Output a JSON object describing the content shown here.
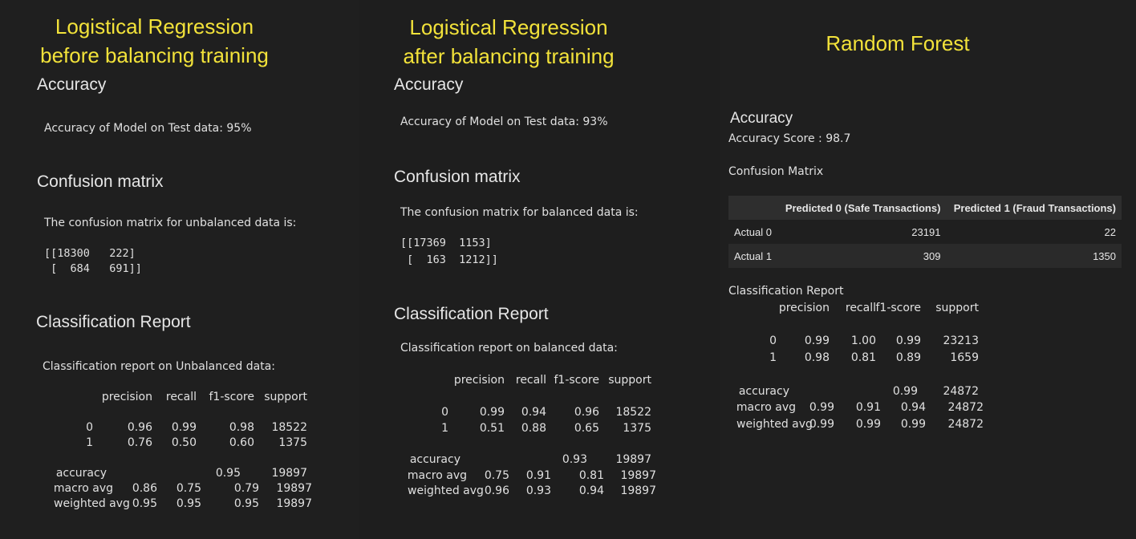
{
  "lr_unbalanced": {
    "title_line1": "Logistical Regression",
    "title_line2": "before balancing training",
    "accuracy_heading": "Accuracy",
    "accuracy_text": "Accuracy of Model on Test data: 95%",
    "cm_heading": "Confusion matrix",
    "cm_text": "The confusion matrix for unbalanced data is:",
    "cm_line1": "[[18300   222]",
    "cm_line2": " [  684   691]]",
    "report_heading": "Classification Report",
    "report_text": "Classification report on Unbalanced data:",
    "report": {
      "header": [
        "precision",
        "recall",
        "f1-score",
        "support"
      ],
      "rows": [
        {
          "label": "0",
          "values": [
            "0.96",
            "0.99",
            "0.98",
            "18522"
          ]
        },
        {
          "label": "1",
          "values": [
            "0.76",
            "0.50",
            "0.60",
            "1375"
          ]
        }
      ],
      "accuracy": {
        "label": "accuracy",
        "value": "0.95",
        "support": "19897"
      },
      "macro": {
        "label": "macro avg",
        "values": [
          "0.86",
          "0.75",
          "0.79",
          "19897"
        ]
      },
      "weighted": {
        "label": "weighted avg",
        "values": [
          "0.95",
          "0.95",
          "0.95",
          "19897"
        ]
      }
    }
  },
  "lr_balanced": {
    "title_line1": "Logistical Regression",
    "title_line2": "after balancing training",
    "accuracy_heading": "Accuracy",
    "accuracy_text": "Accuracy of Model on Test data: 93%",
    "cm_heading": "Confusion matrix",
    "cm_text": "The confusion matrix for balanced data is:",
    "cm_line1": "[[17369  1153]",
    "cm_line2": " [  163  1212]]",
    "report_heading": "Classification Report",
    "report_text": "Classification report on balanced data:",
    "report": {
      "header": [
        "precision",
        "recall",
        "f1-score",
        "support"
      ],
      "rows": [
        {
          "label": "0",
          "values": [
            "0.99",
            "0.94",
            "0.96",
            "18522"
          ]
        },
        {
          "label": "1",
          "values": [
            "0.51",
            "0.88",
            "0.65",
            "1375"
          ]
        }
      ],
      "accuracy": {
        "label": "accuracy",
        "value": "0.93",
        "support": "19897"
      },
      "macro": {
        "label": "macro avg",
        "values": [
          "0.75",
          "0.91",
          "0.81",
          "19897"
        ]
      },
      "weighted": {
        "label": "weighted avg",
        "values": [
          "0.96",
          "0.93",
          "0.94",
          "19897"
        ]
      }
    }
  },
  "random_forest": {
    "title": "Random Forest",
    "accuracy_heading": "Accuracy",
    "accuracy_text": "Accuracy Score : 98.7",
    "cm_heading": "Confusion Matrix",
    "cm_table": {
      "corner": "",
      "columns": [
        "Predicted 0 (Safe Transactions)",
        "Predicted 1 (Fraud Transactions)"
      ],
      "rows": [
        {
          "label": "Actual 0",
          "values": [
            "23191",
            "22"
          ]
        },
        {
          "label": "Actual 1",
          "values": [
            "309",
            "1350"
          ]
        }
      ]
    },
    "report_heading": "Classification Report",
    "report": {
      "header": [
        "precision",
        "recall",
        "f1-score",
        "support"
      ],
      "rows": [
        {
          "label": "0",
          "values": [
            "0.99",
            "1.00",
            "0.99",
            "23213"
          ]
        },
        {
          "label": "1",
          "values": [
            "0.98",
            "0.81",
            "0.89",
            "1659"
          ]
        }
      ],
      "accuracy": {
        "label": "accuracy",
        "value": "0.99",
        "support": "24872"
      },
      "macro": {
        "label": "macro avg",
        "values": [
          "0.99",
          "0.91",
          "0.94",
          "24872"
        ]
      },
      "weighted": {
        "label": "weighted avg",
        "values": [
          "0.99",
          "0.99",
          "0.99",
          "24872"
        ]
      }
    }
  }
}
